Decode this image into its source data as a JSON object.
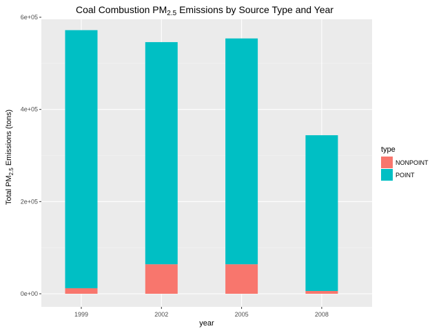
{
  "chart_data": {
    "type": "bar",
    "stacked": true,
    "title_main": "Coal Combustion PM",
    "title_sub": "2.5",
    "title_rest": " Emissions by Source Type and Year",
    "xlabel": "year",
    "ylabel_main": "Total PM",
    "ylabel_sub": "2.5",
    "ylabel_rest": " Emissions (tons)",
    "categories": [
      "1999",
      "2002",
      "2005",
      "2008"
    ],
    "series": [
      {
        "name": "NONPOINT",
        "color": "#F8766D",
        "values": [
          12000,
          64000,
          64000,
          6000
        ]
      },
      {
        "name": "POINT",
        "color": "#00BFC4",
        "values": [
          560000,
          482000,
          490000,
          338000
        ]
      }
    ],
    "ylim": [
      0,
      600000
    ],
    "yticks": [
      0,
      200000,
      400000,
      600000
    ],
    "ytick_labels": [
      "0e+00",
      "2e+05",
      "4e+05",
      "6e+05"
    ],
    "legend": {
      "title": "type",
      "position": "right"
    },
    "panel_background": "#EBEBEB",
    "grid": true
  }
}
